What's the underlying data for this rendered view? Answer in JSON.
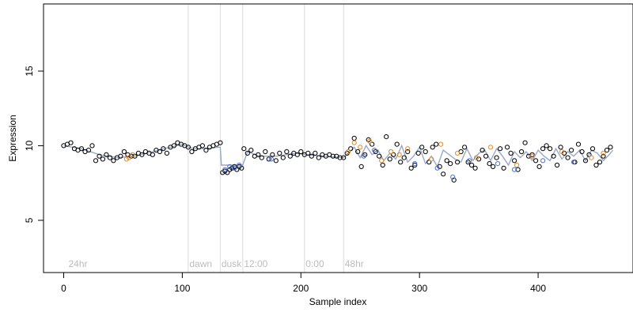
{
  "chart_data": {
    "type": "scatter",
    "title": "",
    "xlabel": "Sample index",
    "ylabel": "Expression",
    "xlim": [
      -17,
      480
    ],
    "ylim": [
      1.5,
      19.5
    ],
    "xticks": [
      0,
      100,
      200,
      300,
      400
    ],
    "yticks": [
      5,
      10,
      15
    ],
    "grid": false,
    "legend": "none",
    "annotation_color": "#bdbdbd",
    "annotations": [
      {
        "label": "24hr",
        "x": 4
      },
      {
        "label": "dawn",
        "x": 106
      },
      {
        "label": "dusk",
        "x": 133
      },
      {
        "label": "12:00",
        "x": 152
      },
      {
        "label": "0:00",
        "x": 204
      },
      {
        "label": "48hr",
        "x": 237
      }
    ],
    "vlines": [
      105,
      132,
      151,
      203,
      236
    ],
    "fit_color": "#9aa8c8",
    "fit": {
      "x": [
        0,
        15,
        30,
        45,
        60,
        75,
        90,
        100,
        105,
        110,
        120,
        130,
        132,
        133,
        140,
        151,
        155,
        165,
        180,
        195,
        205,
        220,
        236,
        240,
        245,
        250,
        255,
        260,
        265,
        270,
        275,
        280,
        285,
        290,
        295,
        300,
        305,
        310,
        315,
        320,
        325,
        330,
        335,
        340,
        345,
        350,
        355,
        360,
        365,
        370,
        375,
        380,
        385,
        390,
        395,
        400,
        405,
        410,
        415,
        420,
        425,
        430,
        435,
        440,
        445,
        450,
        455,
        460,
        463
      ],
      "y": [
        10.0,
        9.8,
        9.4,
        9.2,
        9.3,
        9.6,
        9.9,
        10.1,
        9.9,
        9.8,
        9.8,
        9.9,
        9.9,
        8.7,
        8.7,
        8.7,
        9.6,
        9.3,
        9.3,
        9.5,
        9.4,
        9.3,
        9.2,
        9.5,
        9.9,
        9.2,
        10.0,
        9.4,
        9.7,
        9.0,
        9.5,
        9.1,
        10.0,
        8.9,
        9.3,
        9.9,
        8.8,
        9.3,
        8.6,
        9.7,
        9.4,
        9.1,
        8.9,
        9.8,
        9.0,
        9.5,
        9.7,
        9.0,
        9.8,
        9.3,
        8.7,
        9.6,
        9.2,
        9.6,
        9.0,
        9.7,
        9.3,
        9.0,
        9.8,
        9.1,
        9.6,
        9.3,
        9.7,
        9.0,
        9.7,
        9.5,
        9.0,
        9.4,
        9.7
      ]
    },
    "series": [
      {
        "marker": "circle",
        "color": "#000000",
        "x": [
          0,
          3,
          6,
          9,
          12,
          15,
          18,
          21,
          24,
          27,
          30,
          33,
          36,
          39,
          42,
          45,
          48,
          51,
          54,
          57,
          60,
          63,
          66,
          69,
          72,
          75,
          78,
          81,
          84,
          87,
          90,
          93,
          96,
          99,
          102,
          105,
          108,
          111,
          114,
          117,
          120,
          123,
          126,
          129,
          132,
          134,
          136,
          138,
          140,
          142,
          144,
          146,
          148,
          150,
          152,
          155,
          158,
          161,
          164,
          167,
          170,
          173,
          176,
          179,
          182,
          185,
          188,
          191,
          194,
          197,
          200,
          203,
          206,
          209,
          212,
          215,
          218,
          221,
          224,
          227,
          230,
          233,
          236,
          239,
          242,
          245,
          248,
          251,
          254,
          257,
          260,
          263,
          266,
          269,
          272,
          275,
          278,
          281,
          284,
          287,
          290,
          293,
          296,
          299,
          302,
          305,
          308,
          311,
          314,
          317,
          320,
          323,
          326,
          329,
          332,
          335,
          338,
          341,
          344,
          347,
          350,
          353,
          356,
          359,
          362,
          365,
          368,
          371,
          374,
          377,
          380,
          383,
          386,
          389,
          392,
          395,
          398,
          401,
          404,
          407,
          410,
          413,
          416,
          419,
          422,
          425,
          428,
          431,
          434,
          437,
          440,
          443,
          446,
          449,
          452,
          455,
          458,
          461
        ],
        "y": [
          10.0,
          10.1,
          10.2,
          9.8,
          9.7,
          9.8,
          9.6,
          9.7,
          10.0,
          9.0,
          9.3,
          9.1,
          9.4,
          9.2,
          9.0,
          9.2,
          9.3,
          9.6,
          9.4,
          9.3,
          9.3,
          9.5,
          9.4,
          9.6,
          9.5,
          9.4,
          9.7,
          9.6,
          9.8,
          9.5,
          9.9,
          10.0,
          10.2,
          10.1,
          10.0,
          9.9,
          9.6,
          9.8,
          9.9,
          10.0,
          9.7,
          9.9,
          10.0,
          10.1,
          10.2,
          8.2,
          8.3,
          8.2,
          8.4,
          8.5,
          8.6,
          8.4,
          8.6,
          8.5,
          9.8,
          9.5,
          9.7,
          9.3,
          9.4,
          9.2,
          9.6,
          9.1,
          9.4,
          9.0,
          9.5,
          9.2,
          9.6,
          9.3,
          9.5,
          9.4,
          9.6,
          9.4,
          9.5,
          9.3,
          9.5,
          9.2,
          9.4,
          9.3,
          9.4,
          9.3,
          9.3,
          9.2,
          9.2,
          9.5,
          9.8,
          10.5,
          9.6,
          8.6,
          9.4,
          10.4,
          10.1,
          9.6,
          9.3,
          8.7,
          10.6,
          9.1,
          9.4,
          10.1,
          8.9,
          9.2,
          9.6,
          8.5,
          8.7,
          9.5,
          9.9,
          9.6,
          8.9,
          9.9,
          10.1,
          8.6,
          8.1,
          9.0,
          8.8,
          7.7,
          8.9,
          9.6,
          9.9,
          8.9,
          8.7,
          8.5,
          9.1,
          9.7,
          9.3,
          8.8,
          8.6,
          9.2,
          9.8,
          8.5,
          9.9,
          9.5,
          9.0,
          8.4,
          9.6,
          10.2,
          9.3,
          9.4,
          9.0,
          8.6,
          9.8,
          10.0,
          9.8,
          9.3,
          8.7,
          9.9,
          9.5,
          9.2,
          9.7,
          8.9,
          10.1,
          9.6,
          9.0,
          9.4,
          9.8,
          8.7,
          8.9,
          9.3,
          9.7,
          9.9
        ]
      },
      {
        "marker": "circle",
        "color": "#e08a2a",
        "x": [
          53,
          55,
          58,
          240,
          245,
          250,
          258,
          268,
          276,
          283,
          290,
          310,
          318,
          332,
          348,
          360,
          382,
          395,
          420,
          445,
          455
        ],
        "y": [
          9.1,
          9.2,
          9.4,
          9.6,
          10.2,
          9.9,
          10.3,
          9.0,
          9.6,
          9.4,
          9.8,
          9.1,
          10.1,
          9.5,
          9.2,
          9.9,
          8.7,
          9.3,
          9.6,
          9.2,
          9.5
        ]
      },
      {
        "marker": "circle",
        "color": "#4a6fd0",
        "x": [
          136,
          140,
          144,
          148,
          175,
          253,
          262,
          296,
          315,
          328,
          342,
          366,
          380,
          404,
          430
        ],
        "y": [
          8.4,
          8.6,
          8.5,
          8.7,
          9.1,
          9.3,
          9.7,
          8.8,
          8.5,
          7.9,
          9.0,
          8.8,
          8.4,
          9.0,
          8.9
        ]
      }
    ]
  }
}
